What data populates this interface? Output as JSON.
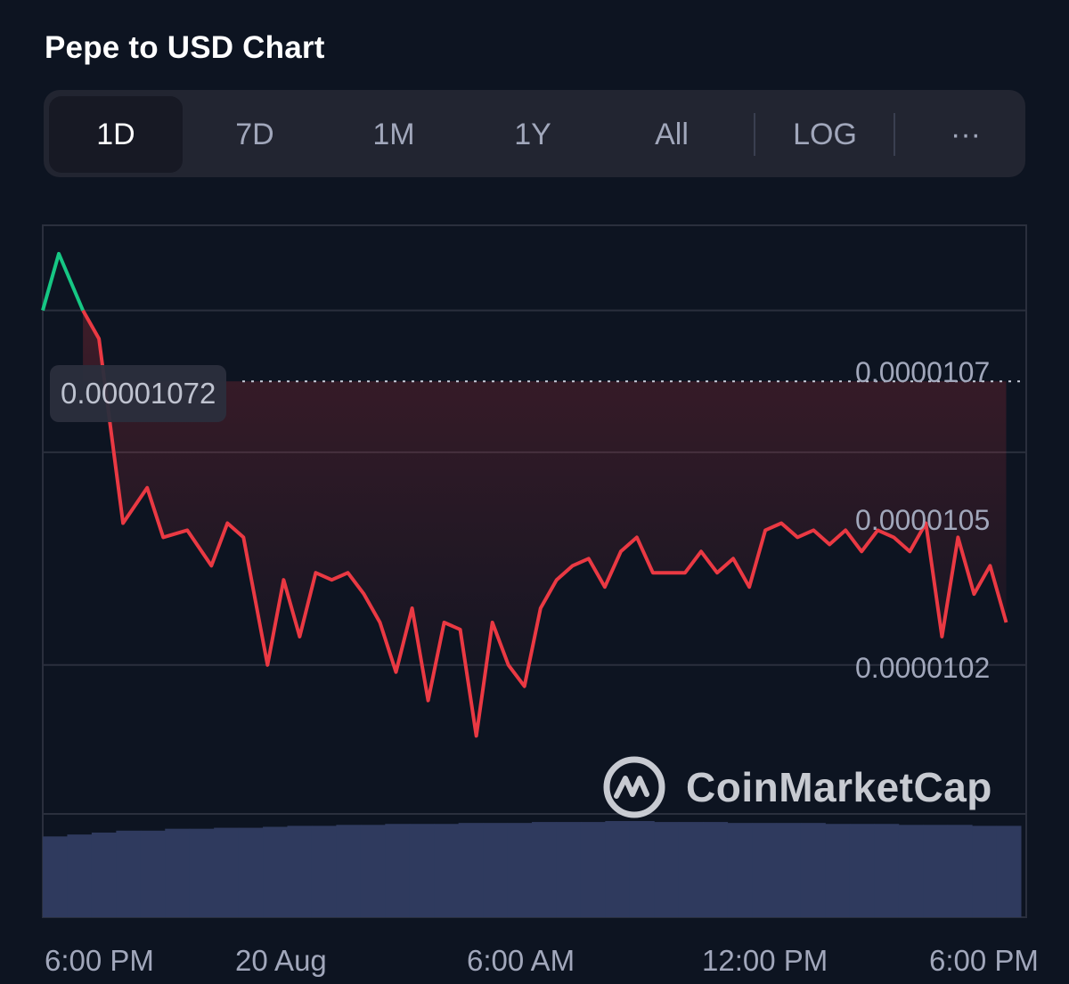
{
  "title": "Pepe to USD Chart",
  "tabs": [
    {
      "label": "1D",
      "active": true
    },
    {
      "label": "7D",
      "active": false
    },
    {
      "label": "1M",
      "active": false
    },
    {
      "label": "1Y",
      "active": false
    },
    {
      "label": "All",
      "active": false
    },
    {
      "label": "LOG",
      "active": false
    },
    {
      "label": "···",
      "active": false
    }
  ],
  "watermark": "CoinMarketCap",
  "colors": {
    "background": "#0d1421",
    "price_down": "#ea3943",
    "price_up": "#16c784",
    "volume": "#2f3a5e",
    "grid": "#2a2f3d"
  },
  "chart_data": {
    "type": "line",
    "title": "Pepe to USD Chart",
    "xlabel": "",
    "ylabel": "",
    "reference_price": 1.06e-05,
    "open_price_label": "0.00001072",
    "y_tick_labels": [
      "0.0000107",
      "0.0000105",
      "0.0000102"
    ],
    "y_ticks": [
      1.07e-05,
      1.05e-05,
      1.02e-05
    ],
    "x_tick_labels": [
      "6:00 PM",
      "20 Aug",
      "6:00 AM",
      "12:00 PM",
      "6:00 PM"
    ],
    "x_ticks_hours": [
      0.5,
      6,
      12,
      18,
      24
    ],
    "xlim_hours": [
      0,
      24.5
    ],
    "ylim": [
      9.99e-06,
      1.082e-05
    ],
    "grid": true,
    "price_x": [
      0,
      0.4,
      1.0,
      1.4,
      2.0,
      2.6,
      3.0,
      3.6,
      4.2,
      4.6,
      5.0,
      5.6,
      6.0,
      6.4,
      6.8,
      7.2,
      7.6,
      8.0,
      8.4,
      8.8,
      9.2,
      9.6,
      10.0,
      10.4,
      10.8,
      11.2,
      11.6,
      12.0,
      12.4,
      12.8,
      13.2,
      13.6,
      14.0,
      14.4,
      14.8,
      15.2,
      15.6,
      16.0,
      16.4,
      16.8,
      17.2,
      17.6,
      18.0,
      18.4,
      18.8,
      19.2,
      19.6,
      20.0,
      20.4,
      20.8,
      21.2,
      21.6,
      22.0,
      22.4,
      22.8,
      23.2,
      23.6,
      24.0
    ],
    "price_y": [
      1.07e-05,
      1.078e-05,
      1.07e-05,
      1.066e-05,
      1.04e-05,
      1.045e-05,
      1.038e-05,
      1.039e-05,
      1.034e-05,
      1.04e-05,
      1.038e-05,
      1.02e-05,
      1.032e-05,
      1.024e-05,
      1.033e-05,
      1.032e-05,
      1.033e-05,
      1.03e-05,
      1.026e-05,
      1.019e-05,
      1.028e-05,
      1.015e-05,
      1.026e-05,
      1.025e-05,
      1.01e-05,
      1.026e-05,
      1.02e-05,
      1.017e-05,
      1.028e-05,
      1.032e-05,
      1.034e-05,
      1.035e-05,
      1.031e-05,
      1.036e-05,
      1.038e-05,
      1.033e-05,
      1.033e-05,
      1.033e-05,
      1.036e-05,
      1.033e-05,
      1.035e-05,
      1.031e-05,
      1.039e-05,
      1.04e-05,
      1.038e-05,
      1.039e-05,
      1.037e-05,
      1.039e-05,
      1.036e-05,
      1.039e-05,
      1.038e-05,
      1.036e-05,
      1.04e-05,
      1.024e-05,
      1.038e-05,
      1.03e-05,
      1.034e-05,
      1.026e-05
    ],
    "volume_relative": [
      0.84,
      0.86,
      0.88,
      0.9,
      0.9,
      0.92,
      0.92,
      0.93,
      0.93,
      0.94,
      0.95,
      0.95,
      0.96,
      0.96,
      0.97,
      0.97,
      0.97,
      0.98,
      0.98,
      0.98,
      0.99,
      0.99,
      0.99,
      1.0,
      1.0,
      0.99,
      0.99,
      0.99,
      0.98,
      0.98,
      0.98,
      0.98,
      0.97,
      0.97,
      0.97,
      0.96,
      0.96,
      0.96,
      0.95,
      0.95
    ]
  }
}
